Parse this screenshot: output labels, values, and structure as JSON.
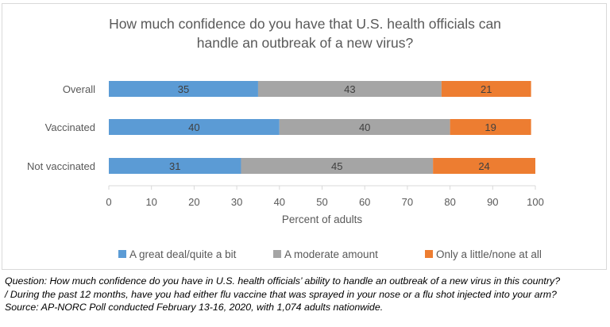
{
  "chart_data": {
    "type": "bar",
    "stacked": true,
    "orientation": "horizontal",
    "title_lines": [
      "How much confidence do you have that U.S. health officials can",
      "handle an outbreak of a new virus?"
    ],
    "categories": [
      "Overall",
      "Vaccinated",
      "Not vaccinated"
    ],
    "series": [
      {
        "name": "A great deal/quite a bit",
        "values": [
          35,
          40,
          31
        ],
        "color": "#5b9bd5"
      },
      {
        "name": "A moderate amount",
        "values": [
          43,
          40,
          45
        ],
        "color": "#a5a5a5"
      },
      {
        "name": "Only a little/none at all",
        "values": [
          21,
          19,
          24
        ],
        "color": "#ed7d31"
      }
    ],
    "xlabel": "Percent of adults",
    "xlim": [
      0,
      100
    ],
    "xticks": [
      0,
      10,
      20,
      30,
      40,
      50,
      60,
      70,
      80,
      90,
      100
    ],
    "grid": false,
    "legend_position": "bottom"
  },
  "footnote": {
    "lines": [
      "Question: How much confidence do you have in U.S. health officials’ ability to handle an outbreak of a new virus in this country?",
      "/ During the past 12 months, have you had either flu vaccine that was sprayed in your nose or a flu shot injected into your arm?",
      "Source: AP-NORC Poll conducted February 13-16, 2020, with 1,074 adults nationwide."
    ]
  }
}
